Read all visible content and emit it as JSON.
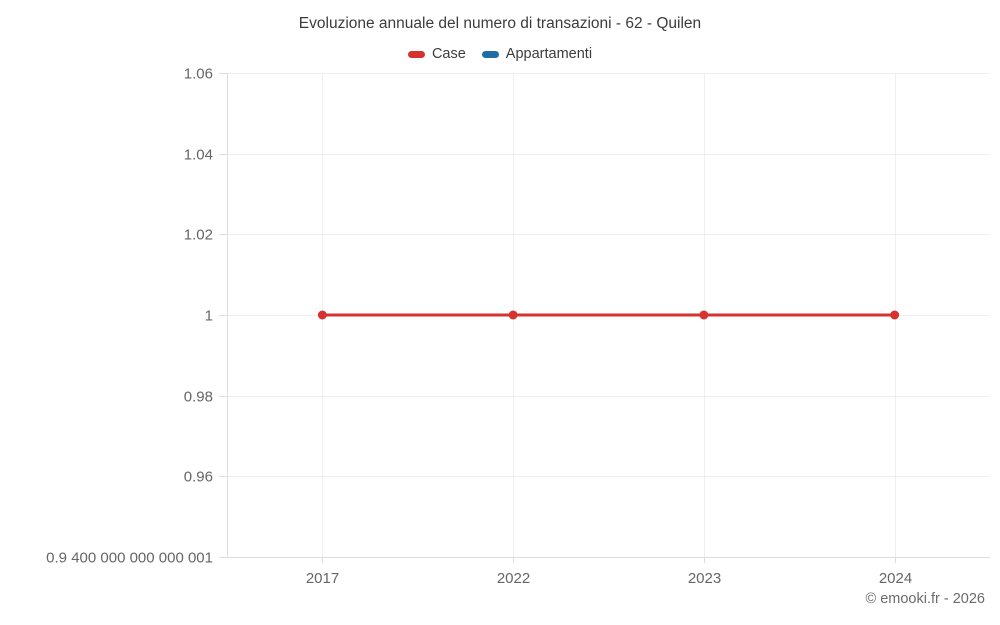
{
  "header": {
    "title": "Evoluzione annuale del numero di transazioni - 62 - Quilen"
  },
  "legend": {
    "items": [
      {
        "label": "Case",
        "color": "#d63230"
      },
      {
        "label": "Appartamenti",
        "color": "#1c6ea4"
      }
    ]
  },
  "footer": {
    "credit": "© emooki.fr - 2026"
  },
  "chart_data": {
    "type": "line",
    "title": "Evoluzione annuale del numero di transazioni - 62 - Quilen",
    "categories": [
      "2017",
      "2022",
      "2023",
      "2024"
    ],
    "series": [
      {
        "name": "Case",
        "color": "#d63230",
        "values": [
          1,
          1,
          1,
          1
        ]
      },
      {
        "name": "Appartamenti",
        "color": "#1c6ea4",
        "values": [
          null,
          null,
          null,
          null
        ]
      }
    ],
    "xlabel": "",
    "ylabel": "",
    "y_axis": {
      "min": 0.9400000000000001,
      "max": 1.06,
      "tick_interval": 0.02,
      "tick_values": [
        1.06,
        1.04,
        1.02,
        1,
        0.98,
        0.96,
        0.9400000000000001
      ],
      "tick_labels": [
        "1.06",
        "1.04",
        "1.02",
        "1",
        "0.98",
        "0.96",
        "0.9 400 000 000 000 001"
      ]
    },
    "grid": true,
    "legend_position": "top",
    "marker_radius": 4.5,
    "line_width": 3,
    "colors": {
      "grid": "#efefef",
      "axis": "#dddddd",
      "text": "#666666",
      "title": "#3c3c3c"
    }
  }
}
